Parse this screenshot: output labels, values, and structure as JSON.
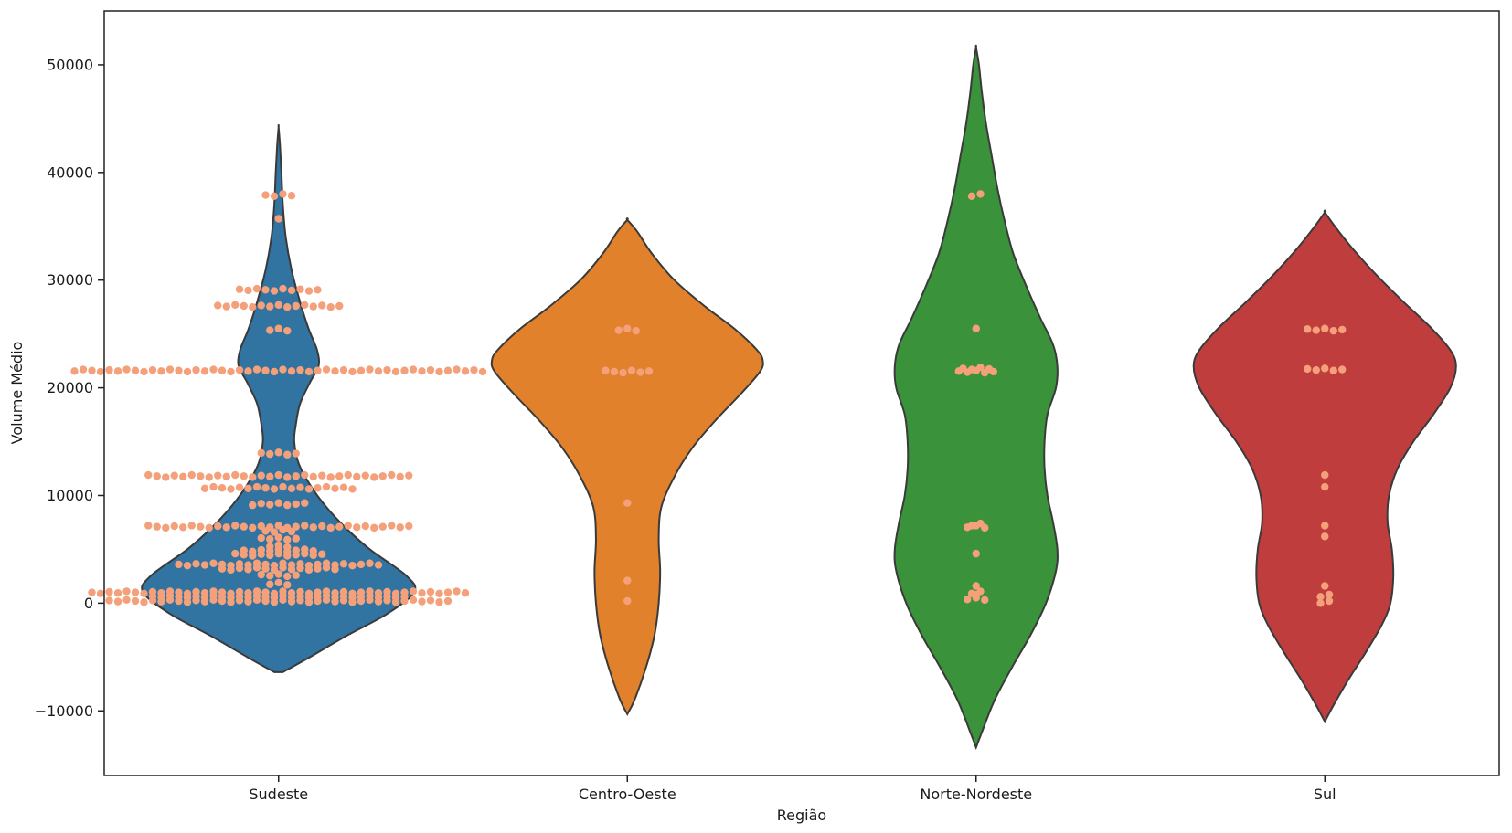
{
  "chart_data": {
    "type": "violin",
    "xlabel": "Região",
    "ylabel": "Volume Médio",
    "ylim": [
      -16000,
      55000
    ],
    "yticks": [
      -10000,
      0,
      10000,
      20000,
      30000,
      40000,
      50000
    ],
    "ytick_labels": [
      "−10000",
      "0",
      "10000",
      "20000",
      "30000",
      "40000",
      "50000"
    ],
    "grid": false,
    "point_color": "#f4a07a",
    "categories": [
      "Sudeste",
      "Centro-Oeste",
      "Norte-Nordeste",
      "Sul"
    ],
    "series": [
      {
        "color": "#3274a1",
        "range": [
          -6400,
          44200
        ],
        "density": [
          [
            -6400,
            0.03
          ],
          [
            -5000,
            0.22
          ],
          [
            -3000,
            0.48
          ],
          [
            -1000,
            0.76
          ],
          [
            1000,
            0.95
          ],
          [
            2500,
            0.9
          ],
          [
            5000,
            0.64
          ],
          [
            7000,
            0.47
          ],
          [
            9000,
            0.33
          ],
          [
            11000,
            0.22
          ],
          [
            13000,
            0.14
          ],
          [
            15000,
            0.11
          ],
          [
            16500,
            0.12
          ],
          [
            18500,
            0.15
          ],
          [
            20500,
            0.22
          ],
          [
            22000,
            0.28
          ],
          [
            23500,
            0.27
          ],
          [
            25500,
            0.21
          ],
          [
            28000,
            0.15
          ],
          [
            31000,
            0.09
          ],
          [
            34000,
            0.05
          ],
          [
            37000,
            0.03
          ],
          [
            40000,
            0.02
          ],
          [
            42500,
            0.01
          ],
          [
            44200,
            0.0
          ]
        ],
        "points": [
          [
            37900,
            4
          ],
          [
            35600,
            1
          ],
          [
            29100,
            10
          ],
          [
            27600,
            15
          ],
          [
            25400,
            3
          ],
          [
            21600,
            48
          ],
          [
            13900,
            5
          ],
          [
            11800,
            31
          ],
          [
            10700,
            18
          ],
          [
            9200,
            7
          ],
          [
            7100,
            31
          ],
          [
            6700,
            4
          ],
          [
            6000,
            5
          ],
          [
            5300,
            3
          ],
          [
            4900,
            9
          ],
          [
            4500,
            11
          ],
          [
            3600,
            24
          ],
          [
            3200,
            14
          ],
          [
            2600,
            5
          ],
          [
            1800,
            3
          ],
          [
            1000,
            44
          ],
          [
            600,
            30
          ],
          [
            200,
            40
          ]
        ]
      },
      {
        "color": "#e1812c",
        "range": [
          -10300,
          35600
        ],
        "density": [
          [
            -10300,
            0.0
          ],
          [
            -9000,
            0.05
          ],
          [
            -6000,
            0.13
          ],
          [
            -3000,
            0.19
          ],
          [
            0,
            0.22
          ],
          [
            3000,
            0.23
          ],
          [
            6000,
            0.22
          ],
          [
            9000,
            0.24
          ],
          [
            12000,
            0.34
          ],
          [
            14500,
            0.46
          ],
          [
            17000,
            0.62
          ],
          [
            19500,
            0.8
          ],
          [
            21500,
            0.93
          ],
          [
            22500,
            0.95
          ],
          [
            23500,
            0.91
          ],
          [
            25500,
            0.75
          ],
          [
            27500,
            0.55
          ],
          [
            30000,
            0.33
          ],
          [
            32500,
            0.17
          ],
          [
            34500,
            0.07
          ],
          [
            35600,
            0.0
          ]
        ],
        "points": [
          [
            25400,
            3
          ],
          [
            21500,
            6
          ],
          [
            9200,
            1
          ],
          [
            2000,
            1
          ],
          [
            100,
            1
          ]
        ]
      },
      {
        "color": "#3a923a",
        "range": [
          -13400,
          51600
        ],
        "density": [
          [
            -13400,
            0.0
          ],
          [
            -12000,
            0.04
          ],
          [
            -9000,
            0.13
          ],
          [
            -6000,
            0.25
          ],
          [
            -3000,
            0.38
          ],
          [
            0,
            0.49
          ],
          [
            3000,
            0.56
          ],
          [
            5000,
            0.57
          ],
          [
            7500,
            0.54
          ],
          [
            10000,
            0.5
          ],
          [
            12500,
            0.48
          ],
          [
            15000,
            0.48
          ],
          [
            17500,
            0.5
          ],
          [
            20000,
            0.56
          ],
          [
            22000,
            0.57
          ],
          [
            24000,
            0.54
          ],
          [
            26500,
            0.45
          ],
          [
            29500,
            0.35
          ],
          [
            32500,
            0.26
          ],
          [
            35500,
            0.2
          ],
          [
            38500,
            0.15
          ],
          [
            41500,
            0.11
          ],
          [
            44500,
            0.07
          ],
          [
            47500,
            0.04
          ],
          [
            50000,
            0.02
          ],
          [
            51600,
            0.0
          ]
        ],
        "points": [
          [
            37900,
            2
          ],
          [
            25400,
            1
          ],
          [
            21800,
            4
          ],
          [
            21500,
            5
          ],
          [
            7300,
            2
          ],
          [
            7100,
            3
          ],
          [
            4500,
            1
          ],
          [
            1500,
            1
          ],
          [
            1000,
            2
          ],
          [
            700,
            1
          ],
          [
            400,
            3
          ]
        ]
      },
      {
        "color": "#c03d3e",
        "range": [
          -11000,
          36300
        ],
        "density": [
          [
            -11000,
            0.0
          ],
          [
            -9500,
            0.06
          ],
          [
            -7000,
            0.17
          ],
          [
            -4500,
            0.29
          ],
          [
            -2000,
            0.4
          ],
          [
            0,
            0.46
          ],
          [
            2500,
            0.48
          ],
          [
            5000,
            0.47
          ],
          [
            7500,
            0.44
          ],
          [
            10000,
            0.45
          ],
          [
            12500,
            0.51
          ],
          [
            15000,
            0.62
          ],
          [
            17500,
            0.76
          ],
          [
            20000,
            0.88
          ],
          [
            22000,
            0.92
          ],
          [
            23500,
            0.88
          ],
          [
            25500,
            0.75
          ],
          [
            28000,
            0.55
          ],
          [
            30500,
            0.36
          ],
          [
            33000,
            0.19
          ],
          [
            35000,
            0.07
          ],
          [
            36300,
            0.0
          ]
        ],
        "points": [
          [
            25400,
            5
          ],
          [
            21700,
            5
          ],
          [
            11800,
            1
          ],
          [
            10700,
            1
          ],
          [
            7100,
            1
          ],
          [
            6100,
            1
          ],
          [
            1500,
            1
          ],
          [
            700,
            2
          ],
          [
            100,
            2
          ]
        ]
      }
    ]
  }
}
